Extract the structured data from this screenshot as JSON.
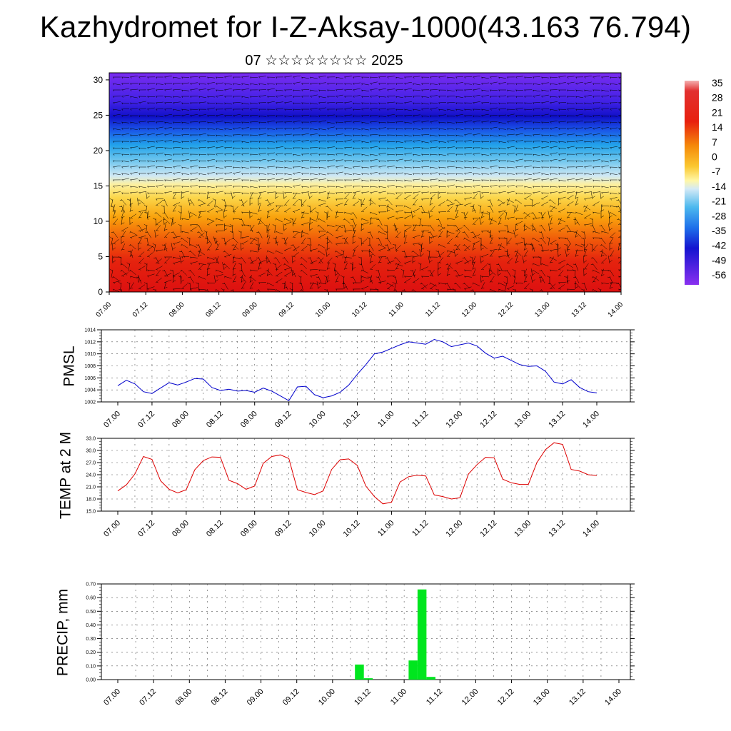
{
  "title": "Kazhydromet for I-Z-Aksay-1000(43.163 76.794)",
  "subtitle": "07 ☆☆☆☆☆☆☆☆ 2025",
  "colors": {
    "pmsl_line": "#0000cc",
    "temp_line": "#dd0000",
    "precip_bar": "#00e61e"
  },
  "chart_data": [
    {
      "type": "heatmap",
      "description_fields": "temperature field by height with wind barbs",
      "x_ticks": [
        "07.00",
        "07.12",
        "08.00",
        "08.12",
        "09.00",
        "09.12",
        "10.00",
        "10.12",
        "11.00",
        "11.12",
        "12.00",
        "12.12",
        "13.00",
        "13.12",
        "14.00"
      ],
      "y_ticks": [
        "0",
        "5",
        "10",
        "15",
        "20",
        "25",
        "30"
      ],
      "ylim": [
        0,
        31
      ],
      "colorbar_labels": [
        "35",
        "28",
        "21",
        "14",
        "7",
        "0",
        "-7",
        "-14",
        "-21",
        "-28",
        "-35",
        "-42",
        "-49",
        "-56"
      ],
      "colorbar_range": [
        -63,
        42
      ]
    },
    {
      "type": "line",
      "ylabel": "PMSL",
      "ylim": [
        1002,
        1014
      ],
      "y_ticks": [
        "1014",
        "1012",
        "1010",
        "1008",
        "1006",
        "1004",
        "1002"
      ],
      "x_ticks": [
        "07.00",
        "07.12",
        "08.00",
        "08.12",
        "09.00",
        "09.12",
        "10.00",
        "10.12",
        "11.00",
        "11.12",
        "12.00",
        "12.12",
        "13.00",
        "13.12",
        "14.00"
      ],
      "x": [
        0,
        3,
        6,
        9,
        12,
        15,
        18,
        21,
        24,
        27,
        30,
        33,
        36,
        39,
        42,
        45,
        48,
        51,
        54,
        57,
        60,
        63,
        66,
        69,
        72,
        75,
        78,
        81,
        84,
        87,
        90,
        93,
        96,
        99,
        102,
        105,
        108,
        111,
        114,
        117,
        120,
        123,
        126,
        129,
        132,
        135,
        138,
        141,
        144,
        147,
        150,
        153,
        156,
        159,
        162,
        165,
        168
      ],
      "values": [
        1004.7,
        1005.6,
        1005.0,
        1003.7,
        1003.4,
        1004.3,
        1005.2,
        1004.8,
        1005.3,
        1005.9,
        1005.8,
        1004.4,
        1003.9,
        1004.1,
        1003.8,
        1003.9,
        1003.6,
        1004.3,
        1003.8,
        1003.0,
        1002.2,
        1004.5,
        1004.6,
        1003.2,
        1002.7,
        1003.0,
        1003.6,
        1004.8,
        1006.6,
        1008.2,
        1010.0,
        1010.3,
        1010.9,
        1011.5,
        1012.0,
        1011.8,
        1011.6,
        1012.4,
        1012.0,
        1011.2,
        1011.5,
        1011.8,
        1011.3,
        1010.1,
        1009.3,
        1009.6,
        1008.9,
        1008.2,
        1007.9,
        1008.0,
        1007.1,
        1005.3,
        1005.0,
        1005.7,
        1004.4,
        1003.7,
        1003.5
      ]
    },
    {
      "type": "line",
      "ylabel": "TEMP at 2 M",
      "ylim": [
        15,
        33
      ],
      "y_ticks": [
        "33.0",
        "30.0",
        "27.0",
        "24.0",
        "21.0",
        "18.0",
        "15.0"
      ],
      "x_ticks": [
        "07.00",
        "07.12",
        "08.00",
        "08.12",
        "09.00",
        "09.12",
        "10.00",
        "10.12",
        "11.00",
        "11.12",
        "12.00",
        "12.12",
        "13.00",
        "13.12",
        "14.00"
      ],
      "x": [
        0,
        3,
        6,
        9,
        12,
        15,
        18,
        21,
        24,
        27,
        30,
        33,
        36,
        39,
        42,
        45,
        48,
        51,
        54,
        57,
        60,
        63,
        66,
        69,
        72,
        75,
        78,
        81,
        84,
        87,
        90,
        93,
        96,
        99,
        102,
        105,
        108,
        111,
        114,
        117,
        120,
        123,
        126,
        129,
        132,
        135,
        138,
        141,
        144,
        147,
        150,
        153,
        156,
        159,
        162,
        165,
        168
      ],
      "values": [
        20.0,
        21.5,
        24.2,
        28.5,
        27.8,
        22.5,
        20.4,
        19.5,
        20.3,
        25.2,
        27.5,
        28.4,
        28.3,
        22.6,
        21.8,
        20.4,
        21.2,
        26.8,
        28.5,
        28.9,
        28.0,
        20.3,
        19.6,
        19.1,
        20.0,
        25.3,
        27.7,
        27.9,
        26.3,
        21.2,
        18.6,
        16.8,
        17.2,
        22.2,
        23.5,
        23.9,
        23.7,
        19.0,
        18.6,
        18.0,
        18.3,
        24.2,
        26.5,
        28.3,
        28.2,
        22.9,
        22.0,
        21.6,
        21.6,
        27.0,
        30.2,
        31.9,
        31.5,
        25.3,
        24.9,
        24.0,
        23.8
      ]
    },
    {
      "type": "bar",
      "ylabel": "PRECIP, mm",
      "ylim": [
        0,
        0.7
      ],
      "y_ticks": [
        "0.70",
        "0.60",
        "0.50",
        "0.40",
        "0.30",
        "0.20",
        "0.10",
        "0.00"
      ],
      "x_ticks": [
        "07.00",
        "07.12",
        "08.00",
        "08.12",
        "09.00",
        "09.12",
        "10.00",
        "10.12",
        "11.00",
        "11.12",
        "12.00",
        "12.12",
        "13.00",
        "13.12",
        "14.00"
      ],
      "x": [
        81,
        84,
        99,
        102,
        105
      ],
      "values": [
        0.11,
        0.01,
        0.14,
        0.66,
        0.02
      ]
    }
  ]
}
